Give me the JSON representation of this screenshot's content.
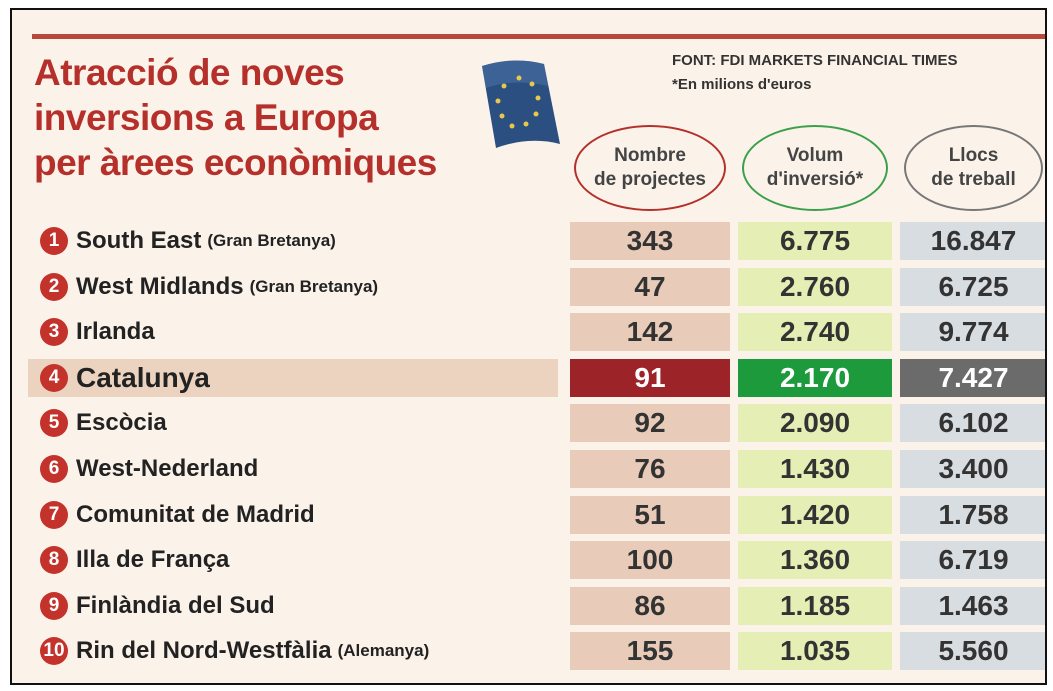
{
  "title": [
    "Atracció de noves",
    "inversions a Europa",
    "per àrees econòmiques"
  ],
  "source": "FONT: FDI MARKETS FINANCIAL TIMES",
  "note": "*En milions d'euros",
  "columns": [
    [
      "Nombre",
      "de projectes"
    ],
    [
      "Volum",
      "d'inversió*"
    ],
    [
      "Llocs",
      "de treball"
    ]
  ],
  "rows": [
    {
      "rank": "1",
      "name": "South East",
      "qualifier": "(Gran Bretanya)",
      "values": [
        "343",
        "6.775",
        "16.847"
      ]
    },
    {
      "rank": "2",
      "name": "West Midlands",
      "qualifier": "(Gran Bretanya)",
      "values": [
        "47",
        "2.760",
        "6.725"
      ]
    },
    {
      "rank": "3",
      "name": "Irlanda",
      "values": [
        "142",
        "2.740",
        "9.774"
      ]
    },
    {
      "rank": "4",
      "name": "Catalunya",
      "values": [
        "91",
        "2.170",
        "7.427"
      ],
      "highlighted": true
    },
    {
      "rank": "5",
      "name": "Escòcia",
      "values": [
        "92",
        "2.090",
        "6.102"
      ]
    },
    {
      "rank": "6",
      "name": "West-Nederland",
      "values": [
        "76",
        "1.430",
        "3.400"
      ]
    },
    {
      "rank": "7",
      "name": "Comunitat de Madrid",
      "values": [
        "51",
        "1.420",
        "1.758"
      ]
    },
    {
      "rank": "8",
      "name": "Illa de França",
      "values": [
        "100",
        "1.360",
        "6.719"
      ]
    },
    {
      "rank": "9",
      "name": "Finlàndia del Sud",
      "values": [
        "86",
        "1.185",
        "1.463"
      ]
    },
    {
      "rank": "10",
      "name": "Rin del Nord-Westfàlia",
      "qualifier": "(Alemanya)",
      "values": [
        "155",
        "1.035",
        "5.560"
      ]
    }
  ]
}
